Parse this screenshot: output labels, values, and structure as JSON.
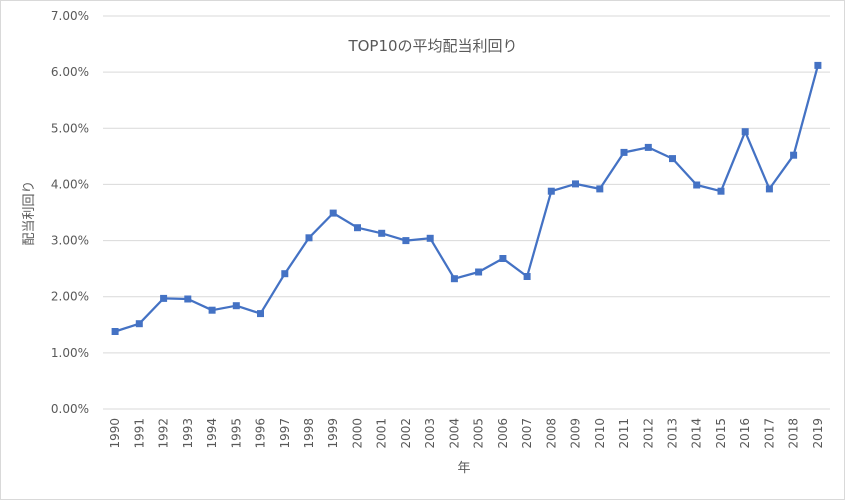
{
  "chart_data": {
    "type": "line",
    "title": "TOP10の平均配当利回り",
    "xlabel": "年",
    "ylabel": "配当利回り",
    "ylim": [
      0,
      7
    ],
    "y_ticks": [
      "0.00%",
      "1.00%",
      "2.00%",
      "3.00%",
      "4.00%",
      "5.00%",
      "6.00%",
      "7.00%"
    ],
    "grid": true,
    "legend": "none",
    "categories": [
      "1990",
      "1991",
      "1992",
      "1993",
      "1994",
      "1995",
      "1996",
      "1997",
      "1998",
      "1999",
      "2000",
      "2001",
      "2002",
      "2003",
      "2004",
      "2005",
      "2006",
      "2007",
      "2008",
      "2009",
      "2010",
      "2011",
      "2012",
      "2013",
      "2014",
      "2015",
      "2016",
      "2017",
      "2018",
      "2019"
    ],
    "series": [
      {
        "color": "#4472c4",
        "values": [
          1.38,
          1.52,
          1.97,
          1.96,
          1.76,
          1.84,
          1.7,
          2.41,
          3.05,
          3.49,
          3.23,
          3.13,
          3.0,
          3.04,
          2.32,
          2.44,
          2.68,
          2.36,
          3.88,
          4.01,
          3.92,
          4.57,
          4.66,
          4.46,
          3.99,
          3.88,
          4.94,
          3.92,
          4.52,
          6.12
        ]
      }
    ]
  }
}
